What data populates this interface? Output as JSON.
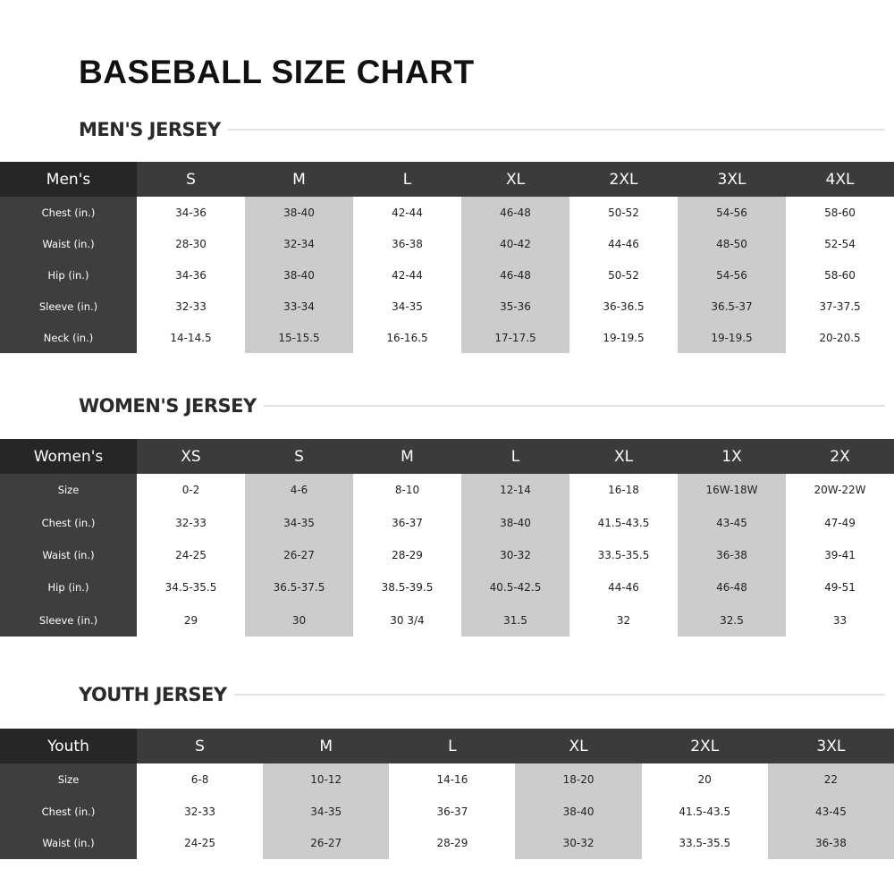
{
  "title": "BASEBALL SIZE CHART",
  "shade_color": "#cccccc",
  "tables": [
    {
      "heading": "MEN'S JERSEY",
      "corner": "Men's",
      "sizes": [
        "S",
        "M",
        "L",
        "XL",
        "2XL",
        "3XL",
        "4XL"
      ],
      "rows": [
        {
          "label": "Chest (in.)",
          "values": [
            "34-36",
            "38-40",
            "42-44",
            "46-48",
            "50-52",
            "54-56",
            "58-60"
          ]
        },
        {
          "label": "Waist (in.)",
          "values": [
            "28-30",
            "32-34",
            "36-38",
            "40-42",
            "44-46",
            "48-50",
            "52-54"
          ]
        },
        {
          "label": "Hip (in.)",
          "values": [
            "34-36",
            "38-40",
            "42-44",
            "46-48",
            "50-52",
            "54-56",
            "58-60"
          ]
        },
        {
          "label": "Sleeve (in.)",
          "values": [
            "32-33",
            "33-34",
            "34-35",
            "35-36",
            "36-36.5",
            "36.5-37",
            "37-37.5"
          ]
        },
        {
          "label": "Neck (in.)",
          "values": [
            "14-14.5",
            "15-15.5",
            "16-16.5",
            "17-17.5",
            "19-19.5",
            "19-19.5",
            "20-20.5"
          ]
        }
      ]
    },
    {
      "heading": "WOMEN'S JERSEY",
      "corner": "Women's",
      "sizes": [
        "XS",
        "S",
        "M",
        "L",
        "XL",
        "1X",
        "2X"
      ],
      "rows": [
        {
          "label": "Size",
          "values": [
            "0-2",
            "4-6",
            "8-10",
            "12-14",
            "16-18",
            "16W-18W",
            "20W-22W"
          ]
        },
        {
          "label": "Chest (in.)",
          "values": [
            "32-33",
            "34-35",
            "36-37",
            "38-40",
            "41.5-43.5",
            "43-45",
            "47-49"
          ]
        },
        {
          "label": "Waist (in.)",
          "values": [
            "24-25",
            "26-27",
            "28-29",
            "30-32",
            "33.5-35.5",
            "36-38",
            "39-41"
          ]
        },
        {
          "label": "Hip (in.)",
          "values": [
            "34.5-35.5",
            "36.5-37.5",
            "38.5-39.5",
            "40.5-42.5",
            "44-46",
            "46-48",
            "49-51"
          ]
        },
        {
          "label": "Sleeve (in.)",
          "values": [
            "29",
            "30",
            "30 3/4",
            "31.5",
            "32",
            "32.5",
            "33"
          ]
        }
      ]
    },
    {
      "heading": "YOUTH JERSEY",
      "corner": "Youth",
      "sizes": [
        "S",
        "M",
        "L",
        "XL",
        "2XL",
        "3XL"
      ],
      "rows": [
        {
          "label": "Size",
          "values": [
            "6-8",
            "10-12",
            "14-16",
            "18-20",
            "20",
            "22"
          ]
        },
        {
          "label": "Chest (in.)",
          "values": [
            "32-33",
            "34-35",
            "36-37",
            "38-40",
            "41.5-43.5",
            "43-45"
          ]
        },
        {
          "label": "Waist (in.)",
          "values": [
            "24-25",
            "26-27",
            "28-29",
            "30-32",
            "33.5-35.5",
            "36-38"
          ]
        }
      ]
    }
  ]
}
